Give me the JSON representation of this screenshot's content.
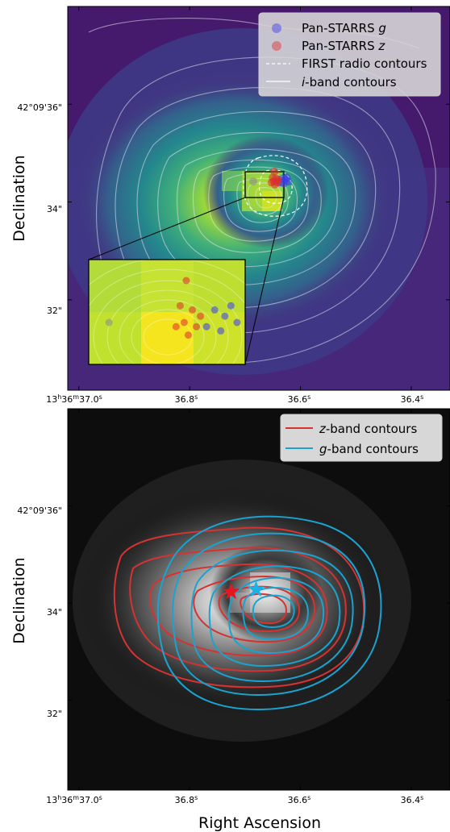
{
  "colors": {
    "viridis_dark": "#440154",
    "viridis_purple": "#46277a",
    "viridis_blue": "#31688e",
    "viridis_teal": "#21918c",
    "viridis_green": "#5ec962",
    "viridis_yellow": "#cfe11f",
    "g_marker": "#3a3af0",
    "z_marker": "#e02a2a",
    "z_contour": "#d63232",
    "g_contour": "#1aa3d0",
    "red_star": "#e8141e",
    "blue_star": "#1ab0ea"
  },
  "chart_data": [
    {
      "type": "scatter",
      "panel": "top",
      "background": "viridis i-band image with white i-band contours and FIRST radio contours",
      "xlabel": "",
      "ylabel": "Declination",
      "x_ticks": [
        {
          "value": 37.0,
          "label": "13h36m37.0s"
        },
        {
          "value": 36.8,
          "label": "36.8s"
        },
        {
          "value": 36.6,
          "label": "36.6s"
        },
        {
          "value": 36.4,
          "label": "36.4s"
        }
      ],
      "y_ticks": [
        {
          "value": 36,
          "label": "42°09'36\""
        },
        {
          "value": 34,
          "label": "34\""
        },
        {
          "value": 32,
          "label": "32\""
        }
      ],
      "x_range_s": [
        37.02,
        36.33
      ],
      "y_range_arcsec": [
        30.15,
        38.0
      ],
      "legend": {
        "placement": "top-right",
        "entries": [
          {
            "name": "Pan-STARRS g",
            "italic_part": "g",
            "kind": "marker",
            "color": "g_marker"
          },
          {
            "name": "Pan-STARRS z",
            "italic_part": "z",
            "kind": "marker",
            "color": "z_marker"
          },
          {
            "name": "FIRST radio contours",
            "kind": "dashed-line"
          },
          {
            "name": "i-band contours",
            "italic_part": "i",
            "kind": "solid-line"
          }
        ]
      },
      "series": [
        {
          "name": "Pan-STARRS g",
          "color": "g_marker",
          "points": [
            [
              36.628,
              34.45
            ],
            [
              36.633,
              34.48
            ],
            [
              36.622,
              34.42
            ],
            [
              36.637,
              34.4
            ],
            [
              36.625,
              34.5
            ],
            [
              36.63,
              34.38
            ]
          ]
        },
        {
          "name": "Pan-STARRS z",
          "color": "z_marker",
          "points": [
            [
              36.648,
              34.42
            ],
            [
              36.644,
              34.48
            ],
            [
              36.652,
              34.4
            ],
            [
              36.64,
              34.45
            ],
            [
              36.646,
              34.36
            ],
            [
              36.65,
              34.5
            ],
            [
              36.642,
              34.4
            ],
            [
              36.647,
              34.62
            ]
          ]
        },
        {
          "name": "other",
          "color": "#888888",
          "points": [
            [
              36.685,
              34.42
            ]
          ]
        }
      ],
      "inset": {
        "placement": "bottom-left",
        "zoom_region_s": [
          36.695,
          36.618
        ],
        "zoom_region_arcsec": [
          34.22,
          34.72
        ]
      }
    },
    {
      "type": "scatter",
      "panel": "bottom",
      "background": "grayscale image with z-band and g-band contours",
      "xlabel": "Right Ascension",
      "ylabel": "Declination",
      "x_ticks": [
        {
          "value": 37.0,
          "label": "13h36m37.0s"
        },
        {
          "value": 36.8,
          "label": "36.8s"
        },
        {
          "value": 36.6,
          "label": "36.6s"
        },
        {
          "value": 36.4,
          "label": "36.4s"
        }
      ],
      "y_ticks": [
        {
          "value": 36,
          "label": "42°09'36\""
        },
        {
          "value": 34,
          "label": "34\""
        },
        {
          "value": 32,
          "label": "32\""
        }
      ],
      "x_range_s": [
        37.02,
        36.33
      ],
      "y_range_arcsec": [
        30.15,
        38.0
      ],
      "legend": {
        "placement": "top-right",
        "entries": [
          {
            "name": "z-band contours",
            "italic_part": "z",
            "color": "z_contour"
          },
          {
            "name": "g-band contours",
            "italic_part": "g",
            "color": "g_contour"
          }
        ]
      },
      "series": [
        {
          "name": "z-band centroid",
          "marker": "star",
          "color": "red_star",
          "points": [
            [
              36.725,
              34.23
            ]
          ]
        },
        {
          "name": "g-band centroid",
          "marker": "star",
          "color": "blue_star",
          "points": [
            [
              36.68,
              34.28
            ]
          ]
        }
      ]
    }
  ],
  "axis_titles": {
    "top_y": "Declination",
    "bottom_y": "Declination",
    "bottom_x": "Right Ascension"
  },
  "tick_labels": {
    "x_first_main": "13",
    "x_first_h": "h",
    "x_first_mid": "36",
    "x_first_m": "m",
    "x_first_tail": "37.0",
    "x_s": "s",
    "x2": "36.8",
    "x3": "36.6",
    "x4": "36.4",
    "y1": "42°09'36\"",
    "y2": "34\"",
    "y3": "32\""
  },
  "legend_top": {
    "g_prefix": "Pan-STARRS ",
    "g_italic": "g",
    "z_prefix": "Pan-STARRS ",
    "z_italic": "z",
    "radio": "FIRST radio contours",
    "iband_italic": "i",
    "iband_suffix": "-band contours"
  },
  "legend_bottom": {
    "z_italic": "z",
    "z_suffix": "-band contours",
    "g_italic": "g",
    "g_suffix": "-band contours"
  }
}
